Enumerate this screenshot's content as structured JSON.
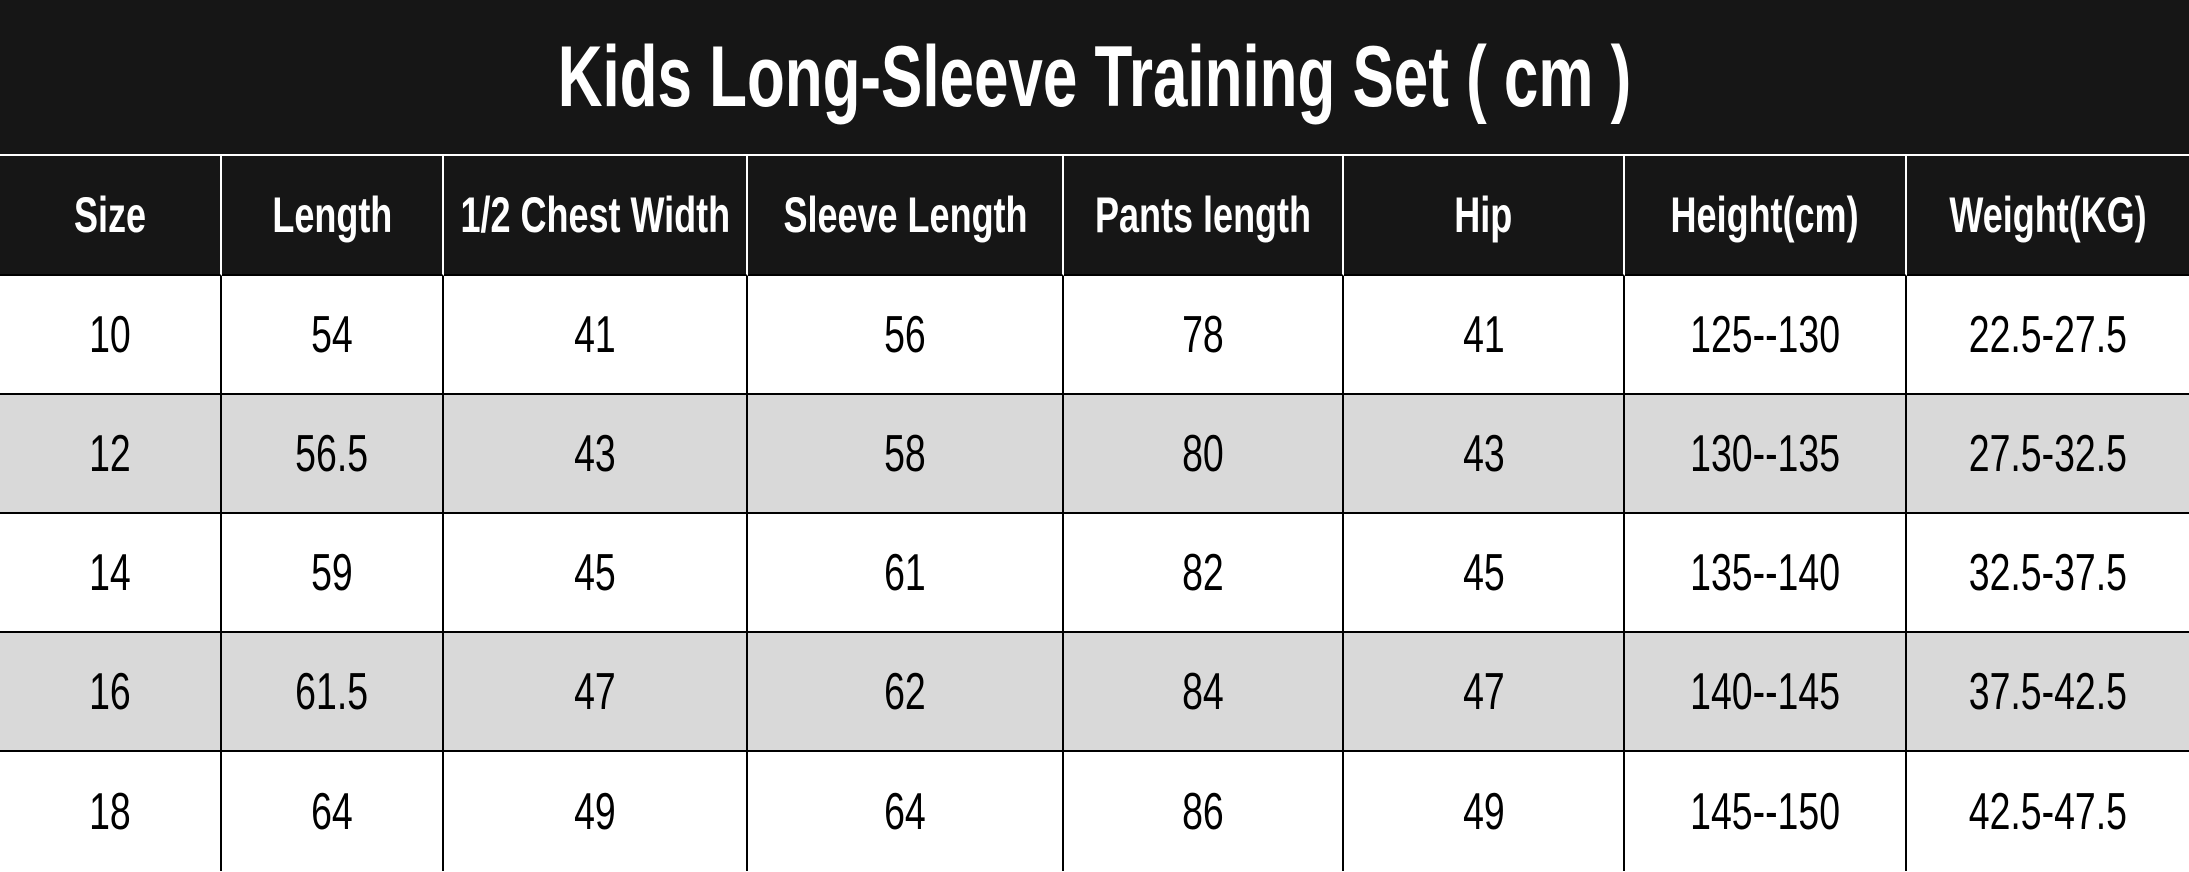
{
  "title": "Kids Long-Sleeve Training Set ( cm )",
  "headers": [
    "Size",
    "Length",
    "1/2 Chest Width",
    "Sleeve Length",
    "Pants length",
    "Hip",
    "Height(cm)",
    "Weight(KG)"
  ],
  "rows": [
    [
      "10",
      "54",
      "41",
      "56",
      "78",
      "41",
      "125--130",
      "22.5-27.5"
    ],
    [
      "12",
      "56.5",
      "43",
      "58",
      "80",
      "43",
      "130--135",
      "27.5-32.5"
    ],
    [
      "14",
      "59",
      "45",
      "61",
      "82",
      "45",
      "135--140",
      "32.5-37.5"
    ],
    [
      "16",
      "61.5",
      "47",
      "62",
      "84",
      "47",
      "140--145",
      "37.5-42.5"
    ],
    [
      "18",
      "64",
      "49",
      "64",
      "86",
      "49",
      "145--150",
      "42.5-47.5"
    ]
  ],
  "colors": {
    "header_bg": "#161616",
    "alt_row_bg": "#d9d9d9"
  }
}
